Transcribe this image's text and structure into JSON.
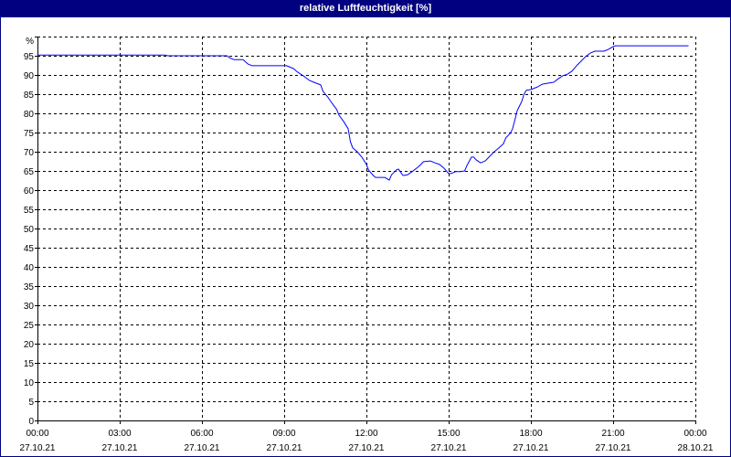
{
  "chart_data": {
    "type": "line",
    "title": "relative Luftfeuchtigkeit [%]",
    "ylabel": "%",
    "ylim": [
      0,
      100
    ],
    "y_ticks": [
      0,
      5,
      10,
      15,
      20,
      25,
      30,
      35,
      40,
      45,
      50,
      55,
      60,
      65,
      70,
      75,
      80,
      85,
      90,
      95
    ],
    "xlim": [
      "27.10.21 00:00",
      "28.10.21 00:00"
    ],
    "x_ticks": [
      {
        "time": "00:00",
        "date": "27.10.21"
      },
      {
        "time": "03:00",
        "date": "27.10.21"
      },
      {
        "time": "06:00",
        "date": "27.10.21"
      },
      {
        "time": "09:00",
        "date": "27.10.21"
      },
      {
        "time": "12:00",
        "date": "27.10.21"
      },
      {
        "time": "15:00",
        "date": "27.10.21"
      },
      {
        "time": "18:00",
        "date": "27.10.21"
      },
      {
        "time": "21:00",
        "date": "27.10.21"
      },
      {
        "time": "00:00",
        "date": "28.10.21"
      }
    ],
    "grid": true,
    "colors": {
      "title_bar": "#000080",
      "title_text": "#ffffff",
      "line": "#0000ff",
      "grid": "#000000"
    },
    "series": [
      {
        "x": [
          "27.10.21 00:00",
          "27.10.21 04:40",
          "27.10.21 04:45",
          "27.10.21 06:55",
          "27.10.21 07:00",
          "27.10.21 07:10",
          "27.10.21 07:30",
          "27.10.21 07:40",
          "27.10.21 07:50",
          "27.10.21 09:05",
          "27.10.21 09:20",
          "27.10.21 09:30",
          "27.10.21 09:45",
          "27.10.21 09:55",
          "27.10.21 10:05",
          "27.10.21 10:20",
          "27.10.21 10:25",
          "27.10.21 10:35",
          "27.10.21 10:45",
          "27.10.21 10:55",
          "27.10.21 11:00",
          "27.10.21 11:10",
          "27.10.21 11:20",
          "27.10.21 11:25",
          "27.10.21 11:30",
          "27.10.21 11:40",
          "27.10.21 11:50",
          "27.10.21 12:00",
          "27.10.21 12:05",
          "27.10.21 12:15",
          "27.10.21 12:20",
          "27.10.21 12:40",
          "27.10.21 12:50",
          "27.10.21 12:55",
          "27.10.21 13:05",
          "27.10.21 13:10",
          "27.10.21 13:20",
          "27.10.21 13:30",
          "27.10.21 13:40",
          "27.10.21 13:55",
          "27.10.21 14:05",
          "27.10.21 14:20",
          "27.10.21 14:30",
          "27.10.21 14:40",
          "27.10.21 14:50",
          "27.10.21 15:00",
          "27.10.21 15:05",
          "27.10.21 15:15",
          "27.10.21 15:25",
          "27.10.21 15:35",
          "27.10.21 15:40",
          "27.10.21 15:50",
          "27.10.21 15:55",
          "27.10.21 16:00",
          "27.10.21 16:10",
          "27.10.21 16:20",
          "27.10.21 16:30",
          "27.10.21 16:40",
          "27.10.21 16:50",
          "27.10.21 17:00",
          "27.10.21 17:05",
          "27.10.21 17:15",
          "27.10.21 17:20",
          "27.10.21 17:25",
          "27.10.21 17:30",
          "27.10.21 17:40",
          "27.10.21 17:45",
          "27.10.21 17:50",
          "27.10.21 18:00",
          "27.10.21 18:15",
          "27.10.21 18:25",
          "27.10.21 18:40",
          "27.10.21 18:50",
          "27.10.21 19:00",
          "27.10.21 19:10",
          "27.10.21 19:20",
          "27.10.21 19:30",
          "27.10.21 19:40",
          "27.10.21 19:50",
          "27.10.21 20:00",
          "27.10.21 20:10",
          "27.10.21 20:20",
          "27.10.21 20:40",
          "27.10.21 20:50",
          "27.10.21 21:00",
          "27.10.21 21:05",
          "27.10.21 23:45"
        ],
        "y": [
          95.2,
          95.2,
          95.0,
          95.0,
          94.5,
          94.0,
          94.0,
          92.9,
          92.4,
          92.4,
          91.7,
          90.7,
          89.5,
          88.6,
          88.1,
          87.4,
          85.7,
          84.3,
          82.6,
          81.0,
          79.5,
          77.9,
          76.0,
          72.6,
          71.0,
          70.0,
          68.6,
          66.7,
          65.2,
          63.8,
          63.3,
          63.3,
          62.6,
          64.0,
          65.2,
          65.5,
          63.8,
          64.0,
          64.8,
          66.2,
          67.4,
          67.6,
          67.1,
          66.7,
          65.7,
          64.3,
          64.3,
          64.8,
          64.8,
          65.0,
          66.4,
          68.6,
          68.6,
          67.9,
          67.1,
          67.6,
          68.8,
          70.0,
          71.0,
          72.1,
          73.6,
          74.8,
          76.0,
          78.3,
          80.7,
          83.1,
          85.0,
          86.0,
          86.2,
          86.9,
          87.6,
          87.9,
          88.1,
          89.0,
          89.8,
          90.2,
          91.0,
          92.4,
          93.6,
          94.8,
          95.7,
          96.2,
          96.2,
          96.7,
          97.4,
          97.6,
          97.6
        ]
      }
    ]
  }
}
